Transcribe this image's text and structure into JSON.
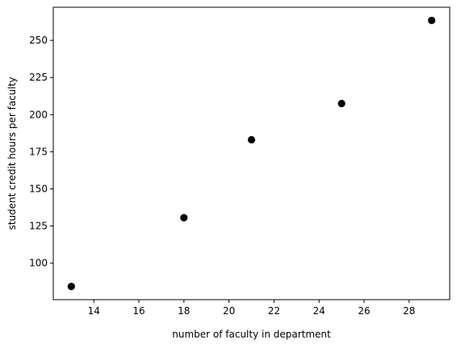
{
  "chart_data": {
    "type": "scatter",
    "title": "",
    "xlabel": "number of faculty in department",
    "ylabel": "student credit hours per faculty",
    "x": [
      13,
      18,
      21,
      25,
      29
    ],
    "y": [
      84.3,
      130.6,
      183.1,
      207.5,
      263.4
    ],
    "xlim": [
      12.2,
      29.8
    ],
    "ylim": [
      75.4,
      272.3
    ],
    "xticks": [
      14,
      16,
      18,
      20,
      22,
      24,
      26,
      28
    ],
    "yticks": [
      100,
      125,
      150,
      175,
      200,
      225,
      250
    ],
    "marker_color": "#000000",
    "grid": false,
    "legend": "none"
  }
}
